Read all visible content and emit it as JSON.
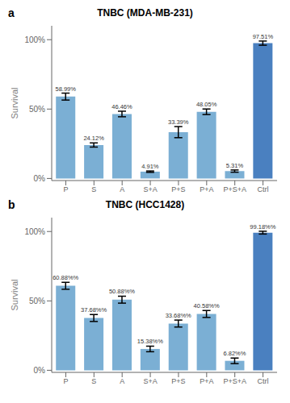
{
  "chart_data": [
    {
      "type": "bar",
      "title": "TNBC (MDA-MB-231)",
      "annotations": [
        "a"
      ],
      "categories": [
        "P",
        "S",
        "A",
        "S+A",
        "P+S",
        "P+A",
        "P+S+A",
        "Ctrl"
      ],
      "values": [
        58.99,
        24.12,
        46.46,
        4.91,
        33.39,
        48.05,
        5.31,
        97.51
      ],
      "errors": [
        2.5,
        1.5,
        2.0,
        0.5,
        4.0,
        2.0,
        0.8,
        1.5
      ],
      "value_labels": [
        "58.99%",
        "24.12%",
        "46.46%",
        "4.91%",
        "33.39%",
        "48.05%",
        "5.31%",
        "97.51%"
      ],
      "data_labels": true,
      "colors": [
        "#7bafd4",
        "#7bafd4",
        "#7bafd4",
        "#7bafd4",
        "#7bafd4",
        "#7bafd4",
        "#7bafd4",
        "#4a80c0"
      ],
      "ylabel": "Survival",
      "ylim": [
        -1.5,
        110
      ],
      "yticks": [
        {
          "value": 0,
          "label": "0%"
        },
        {
          "value": 50,
          "label": "50%"
        },
        {
          "value": 100,
          "label": "100%"
        }
      ],
      "grid": false
    },
    {
      "type": "bar",
      "title": "TNBC (HCC1428)",
      "annotations": [
        "b"
      ],
      "categories": [
        "P",
        "S",
        "A",
        "S+A",
        "P+S",
        "P+A",
        "P+S+A",
        "Ctrl"
      ],
      "values": [
        60.88,
        37.68,
        50.88,
        15.38,
        33.68,
        40.58,
        6.82,
        99.18
      ],
      "errors": [
        2.5,
        2.5,
        2.5,
        2.0,
        2.5,
        2.5,
        2.0,
        1.0
      ],
      "value_labels": [
        "60.88%%",
        "37.68%%",
        "50.88%%",
        "15.38%%",
        "33.68%%",
        "40.58%%",
        "6.82%%",
        "99.18%%"
      ],
      "data_labels": true,
      "colors": [
        "#7bafd4",
        "#7bafd4",
        "#7bafd4",
        "#7bafd4",
        "#7bafd4",
        "#7bafd4",
        "#7bafd4",
        "#4a80c0"
      ],
      "ylabel": "Survival",
      "ylim": [
        -1.5,
        110
      ],
      "yticks": [
        {
          "value": 0,
          "label": "0%"
        },
        {
          "value": 50,
          "label": "50%"
        },
        {
          "value": 100,
          "label": "100%"
        }
      ],
      "grid": false
    }
  ]
}
